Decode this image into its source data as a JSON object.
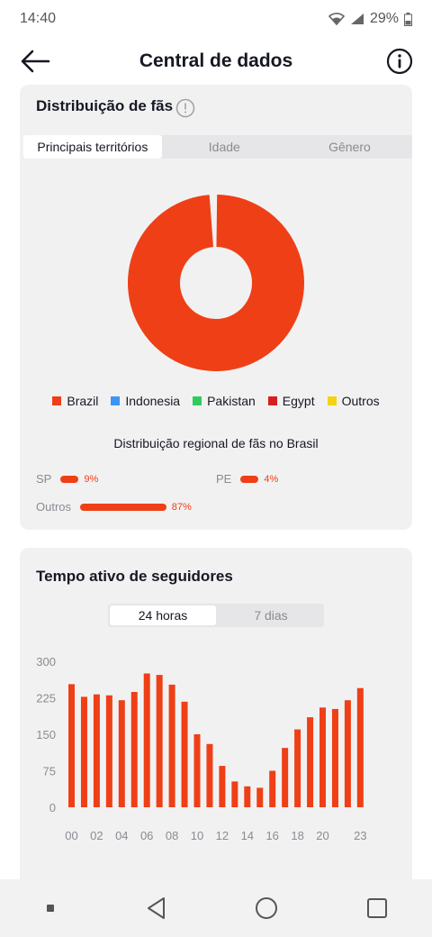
{
  "status_bar": {
    "time": "14:40",
    "battery": "29%"
  },
  "header": {
    "title": "Central de dados"
  },
  "fans_card": {
    "title": "Distribuição de fãs",
    "tabs": [
      "Principais territórios",
      "Idade",
      "Gênero"
    ],
    "legend": [
      {
        "label": "Brazil",
        "color": "#ef3f16"
      },
      {
        "label": "Indonesia",
        "color": "#3d94f5"
      },
      {
        "label": "Pakistan",
        "color": "#2ecc5c"
      },
      {
        "label": "Egypt",
        "color": "#d81e1e"
      },
      {
        "label": "Outros",
        "color": "#f5d20f"
      }
    ],
    "regional_title": "Distribuição regional de fãs no Brasil",
    "regions": [
      {
        "label": "SP",
        "pct": "9%",
        "value": 9
      },
      {
        "label": "PE",
        "pct": "4%",
        "value": 4
      },
      {
        "label": "Outros",
        "pct": "87%",
        "value": 87
      }
    ]
  },
  "active_card": {
    "title": "Tempo ativo de seguidores",
    "tabs": [
      "24 horas",
      "7 dias"
    ]
  },
  "chart_data": [
    {
      "type": "pie",
      "categories": [
        "Brazil",
        "Indonesia",
        "Pakistan",
        "Egypt",
        "Outros"
      ],
      "values": [
        99,
        0.25,
        0.25,
        0.25,
        0.25
      ],
      "colors": [
        "#ef3f16",
        "#3d94f5",
        "#2ecc5c",
        "#d81e1e",
        "#f5d20f"
      ],
      "donut": true
    },
    {
      "type": "bar",
      "categories": [
        "00",
        "01",
        "02",
        "03",
        "04",
        "05",
        "06",
        "07",
        "08",
        "09",
        "10",
        "11",
        "12",
        "13",
        "14",
        "15",
        "16",
        "17",
        "18",
        "19",
        "20",
        "21",
        "22",
        "23"
      ],
      "tick_labels": [
        "00",
        "02",
        "04",
        "06",
        "08",
        "10",
        "12",
        "14",
        "16",
        "18",
        "20",
        "23"
      ],
      "values": [
        253,
        227,
        232,
        230,
        220,
        237,
        275,
        272,
        252,
        217,
        150,
        130,
        85,
        53,
        43,
        40,
        75,
        122,
        160,
        185,
        205,
        202,
        220,
        245
      ],
      "yticks": [
        0,
        75,
        150,
        225,
        300
      ],
      "ylim": [
        0,
        300
      ],
      "color": "#ef3f16",
      "grid": false
    }
  ]
}
